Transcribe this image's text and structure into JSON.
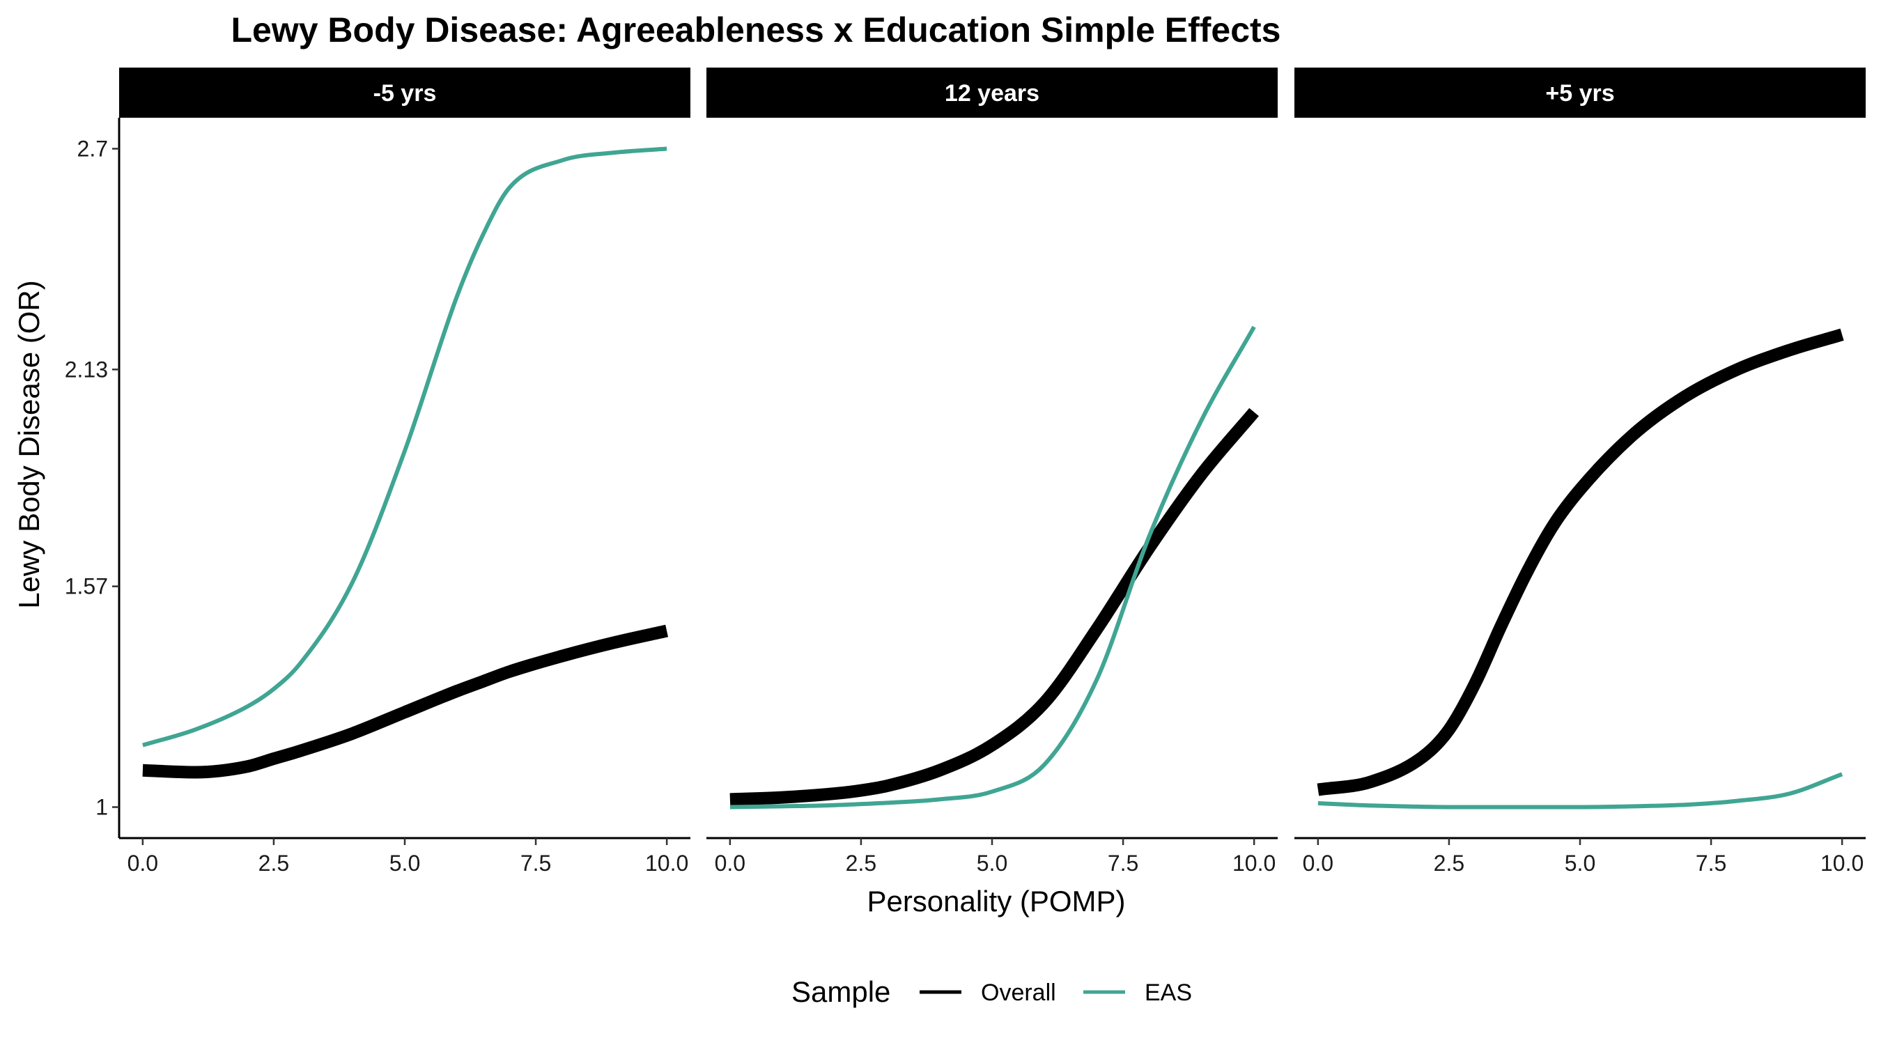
{
  "chart_data": {
    "type": "line",
    "title": "Lewy Body Disease: Agreeableness x Education Simple Effects",
    "xlabel": "Personality (POMP)",
    "ylabel": "Lewy Body Disease (OR)",
    "xlim": [
      -0.45,
      10.45
    ],
    "ylim": [
      0.92,
      2.78
    ],
    "x_ticks": [
      0,
      2.5,
      5,
      7.5,
      10
    ],
    "x_tick_labels": [
      "0.0",
      "2.5",
      "5.0",
      "7.5",
      "10.0"
    ],
    "y_ticks": [
      1,
      1.57,
      2.13,
      2.7
    ],
    "y_tick_labels": [
      "1",
      "1.57",
      "2.13",
      "2.7"
    ],
    "grid": false,
    "legend": {
      "title": "Sample",
      "position": "bottom",
      "entries": [
        {
          "label": "Overall",
          "color": "#000000"
        },
        {
          "label": "EAS",
          "color": "#40A593"
        }
      ]
    },
    "facets": [
      {
        "label": "-5 yrs",
        "x": [
          0,
          1,
          2,
          2.5,
          3,
          4,
          5,
          6,
          6.5,
          7,
          8,
          9,
          10
        ],
        "series": [
          {
            "name": "Overall",
            "values": [
              1.095,
              1.09,
              1.105,
              1.125,
              1.145,
              1.19,
              1.245,
              1.3,
              1.325,
              1.35,
              1.39,
              1.425,
              1.455
            ]
          },
          {
            "name": "EAS",
            "values": [
              1.16,
              1.2,
              1.26,
              1.305,
              1.37,
              1.58,
              1.92,
              2.32,
              2.48,
              2.6,
              2.67,
              2.69,
              2.7
            ]
          }
        ]
      },
      {
        "label": "12 years",
        "x": [
          0,
          1,
          2,
          2.5,
          3,
          4,
          5,
          6,
          7,
          8,
          9,
          10
        ],
        "series": [
          {
            "name": "Overall",
            "values": [
              1.02,
              1.025,
              1.035,
              1.043,
              1.055,
              1.095,
              1.16,
              1.27,
              1.46,
              1.67,
              1.86,
              2.02
            ]
          },
          {
            "name": "EAS",
            "values": [
              1.0,
              1.002,
              1.005,
              1.008,
              1.011,
              1.02,
              1.04,
              1.11,
              1.33,
              1.7,
              2.0,
              2.24
            ]
          }
        ]
      },
      {
        "label": "+5 yrs",
        "x": [
          0,
          1,
          2,
          2.5,
          3,
          3.5,
          4,
          4.5,
          5,
          6,
          7,
          8,
          9,
          10
        ],
        "series": [
          {
            "name": "Overall",
            "values": [
              1.045,
              1.065,
              1.13,
              1.2,
              1.32,
              1.47,
              1.61,
              1.73,
              1.82,
              1.96,
              2.06,
              2.13,
              2.18,
              2.22
            ]
          },
          {
            "name": "EAS",
            "values": [
              1.01,
              1.004,
              1.001,
              1.0,
              1.0,
              1.0,
              1.0,
              1.0,
              1.0,
              1.002,
              1.006,
              1.016,
              1.035,
              1.085
            ]
          }
        ]
      }
    ]
  }
}
